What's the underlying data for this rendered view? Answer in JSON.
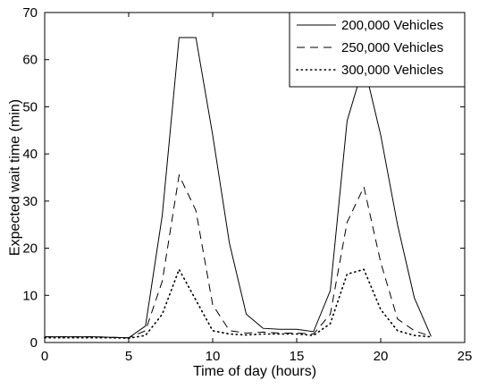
{
  "chart_data": {
    "type": "line",
    "title": "",
    "xlabel": "Time of day (hours)",
    "ylabel": "Expected wait time (min)",
    "xlim": [
      0,
      25
    ],
    "ylim": [
      0,
      70
    ],
    "xticks": [
      0,
      5,
      10,
      15,
      20,
      25
    ],
    "yticks": [
      0,
      10,
      20,
      30,
      40,
      50,
      60,
      70
    ],
    "grid": false,
    "legend_position": "top-right",
    "series": [
      {
        "name": "200,000 Vehicles",
        "style": "solid",
        "color": "#000000",
        "x": [
          0,
          1,
          2,
          3,
          4,
          5,
          6,
          7,
          8,
          9,
          10,
          11,
          12,
          13,
          14,
          15,
          16,
          17,
          18,
          19,
          20,
          21,
          22,
          23
        ],
        "y": [
          1.2,
          1.2,
          1.2,
          1.2,
          1.1,
          1.0,
          3.5,
          27,
          64.7,
          64.7,
          44,
          21,
          6,
          3,
          2.8,
          2.8,
          2.3,
          11,
          47,
          59,
          44,
          25,
          9.5,
          1.3
        ]
      },
      {
        "name": "250,000 Vehicles",
        "style": "dashed",
        "color": "#000000",
        "x": [
          0,
          1,
          2,
          3,
          4,
          5,
          6,
          7,
          8,
          9,
          10,
          11,
          12,
          13,
          14,
          15,
          16,
          17,
          18,
          19,
          20,
          21,
          22,
          23
        ],
        "y": [
          1.2,
          1.2,
          1.2,
          1.2,
          1.1,
          1.0,
          2.5,
          13,
          35.5,
          28,
          8,
          2.5,
          2.0,
          2.2,
          2.0,
          2.0,
          1.8,
          6,
          25.5,
          33,
          17,
          5,
          2.5,
          1.3
        ]
      },
      {
        "name": "300,000 Vehicles",
        "style": "dotted",
        "color": "#000000",
        "x": [
          0,
          1,
          2,
          3,
          4,
          5,
          6,
          7,
          8,
          9,
          10,
          11,
          12,
          13,
          14,
          15,
          16,
          17,
          18,
          19,
          20,
          21,
          22,
          23
        ],
        "y": [
          1.0,
          1.0,
          1.0,
          1.0,
          1.0,
          0.9,
          1.5,
          6,
          15.5,
          9,
          2.5,
          1.8,
          1.6,
          1.8,
          1.8,
          1.8,
          1.5,
          4,
          14.5,
          15.5,
          7,
          2.5,
          1.5,
          1.2
        ]
      }
    ]
  }
}
